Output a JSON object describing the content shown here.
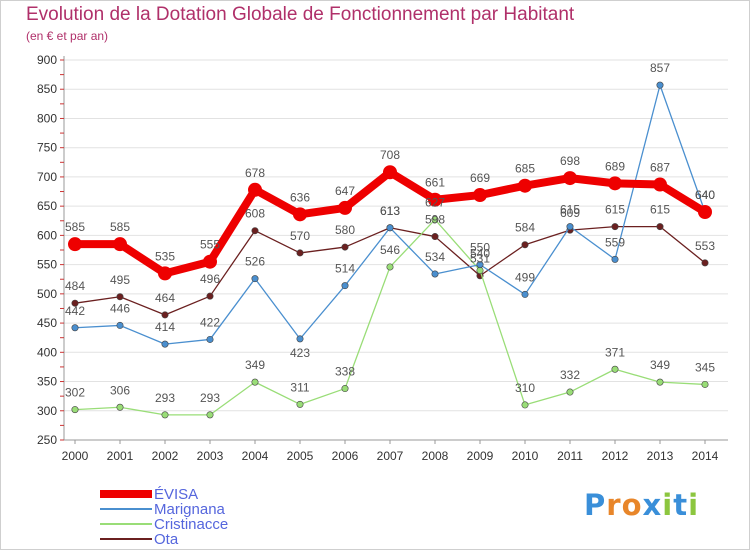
{
  "title": "Evolution de la Dotation Globale de Fonctionnement par Habitant",
  "subtitle": "(en € et par an)",
  "colors": {
    "title": "#b0306a",
    "axis": "#333333",
    "grid": "#e2e2e2",
    "label": "#555555"
  },
  "logo": {
    "text": "Proxiti",
    "letters": [
      "P",
      "r",
      "o",
      "x",
      "i",
      "t",
      "i"
    ],
    "colors": [
      "#3a8fd9",
      "#e8862a",
      "#e8862a",
      "#3a8fd9",
      "#8cc63f",
      "#3a8fd9",
      "#8cc63f"
    ]
  },
  "chart_data": {
    "type": "line",
    "title": "Evolution de la Dotation Globale de Fonctionnement par Habitant",
    "subtitle": "(en € et par an)",
    "x": [
      "2000",
      "2001",
      "2002",
      "2003",
      "2004",
      "2005",
      "2006",
      "2007",
      "2008",
      "2009",
      "2010",
      "2011",
      "2012",
      "2013",
      "2014"
    ],
    "ylim": [
      250,
      900
    ],
    "yticks": [
      250,
      300,
      350,
      400,
      450,
      500,
      550,
      600,
      650,
      700,
      750,
      800,
      850,
      900
    ],
    "grid": "horizontal",
    "legend_position": "bottom-left",
    "series": [
      {
        "name": "ÉVISA",
        "color": "#ee0000",
        "width": 8,
        "marker": 7,
        "values": [
          585,
          585,
          535,
          555,
          678,
          636,
          647,
          708,
          661,
          669,
          685,
          698,
          689,
          687,
          640
        ],
        "labels": [
          "585",
          "585",
          "535",
          "555",
          "678",
          "636",
          "647",
          "708",
          "661",
          "669",
          "685",
          "698",
          "689",
          "687",
          "640"
        ]
      },
      {
        "name": "Marignana",
        "color": "#4a8fcf",
        "width": 1.3,
        "marker": 3.2,
        "values": [
          442,
          446,
          414,
          422,
          526,
          423,
          514,
          613,
          534,
          550,
          499,
          615,
          559,
          857,
          640
        ],
        "labels": [
          "442",
          "446",
          "414",
          "422",
          "526",
          "423",
          "514",
          "613",
          "534",
          "550",
          "499",
          "615",
          "559",
          "857",
          "640"
        ]
      },
      {
        "name": "Cristinacce",
        "color": "#99dd77",
        "width": 1.3,
        "marker": 3.2,
        "values": [
          302,
          306,
          293,
          293,
          349,
          311,
          338,
          546,
          627,
          540,
          310,
          332,
          371,
          349,
          345
        ],
        "labels": [
          "302",
          "306",
          "293",
          "293",
          "349",
          "311",
          "338",
          "546",
          "627",
          "540",
          "310",
          "332",
          "371",
          "349",
          "345"
        ]
      },
      {
        "name": "Ota",
        "color": "#6b2020",
        "width": 1.3,
        "marker": 3.2,
        "values": [
          484,
          495,
          464,
          496,
          608,
          570,
          580,
          613,
          598,
          531,
          584,
          609,
          615,
          615,
          553
        ],
        "labels": [
          "484",
          "495",
          "464",
          "496",
          "608",
          "570",
          "580",
          "613",
          "598",
          "531",
          "584",
          "609",
          "615",
          "615",
          "553"
        ]
      }
    ]
  }
}
